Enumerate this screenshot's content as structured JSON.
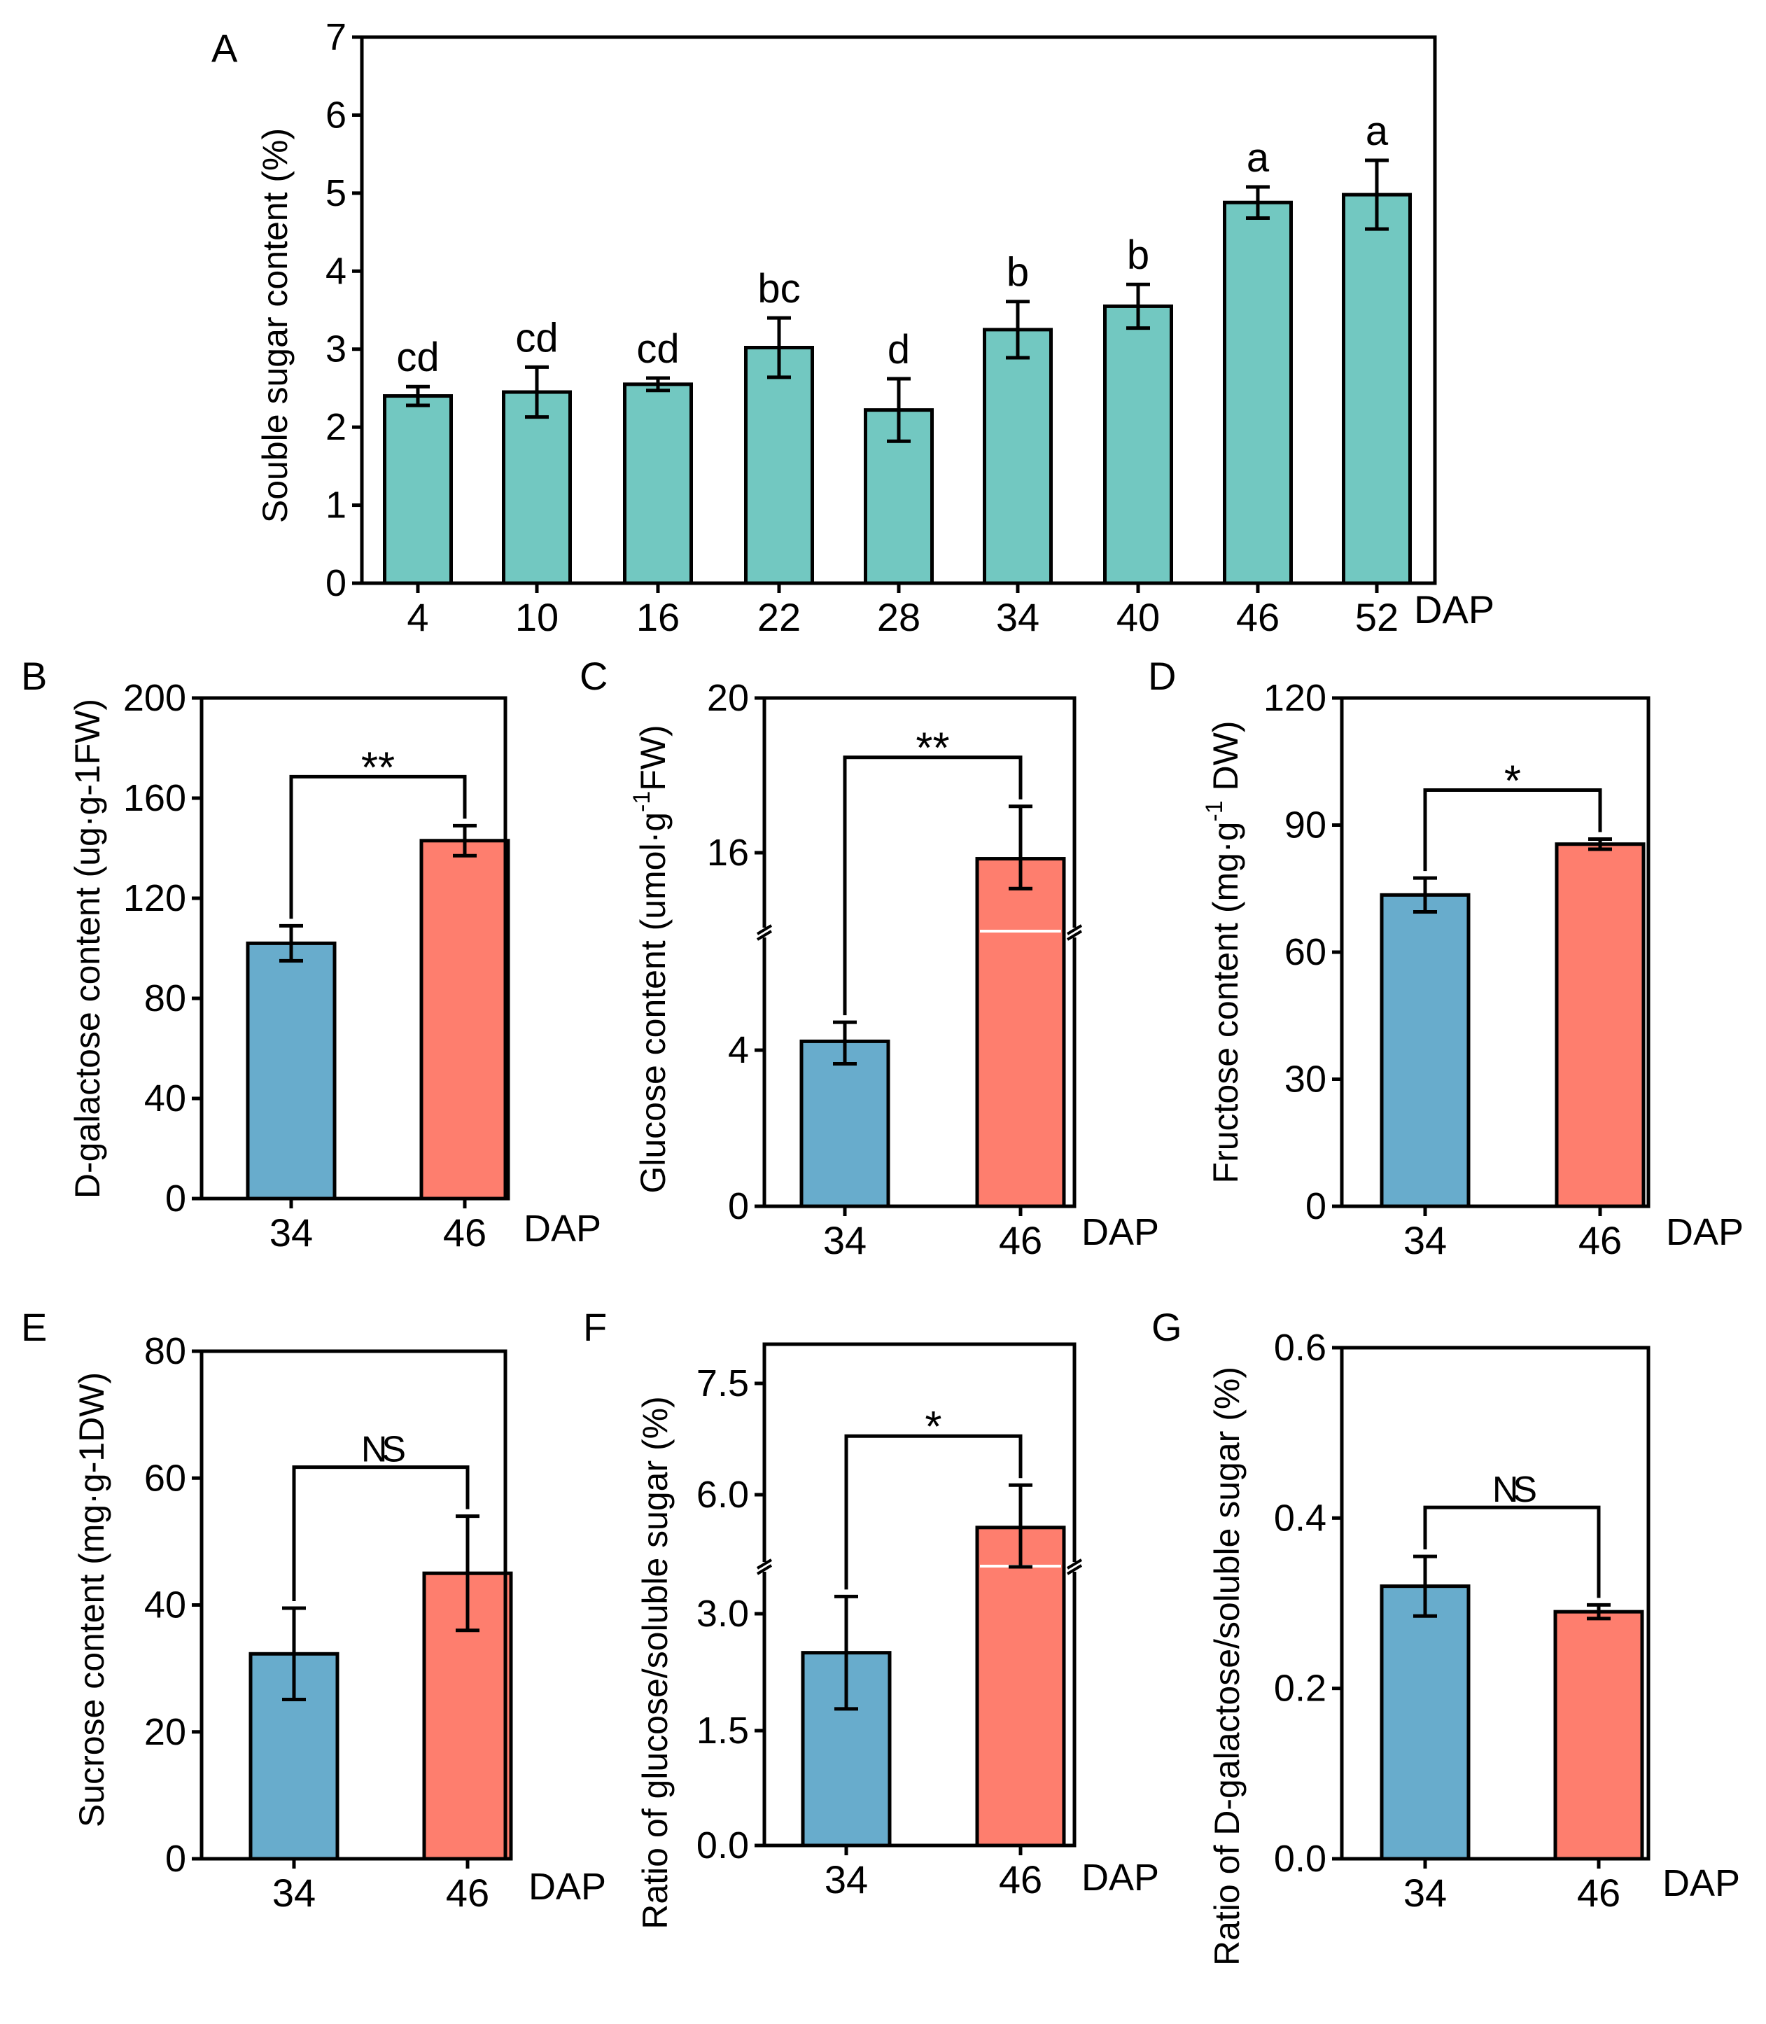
{
  "colors": {
    "teal": "#72C8C1",
    "blue": "#68ACCC",
    "salmon": "#FE7E6E",
    "axis": "#000000"
  },
  "chart_data": [
    {
      "panel": "A",
      "type": "bar",
      "categories": [
        "4",
        "10",
        "16",
        "22",
        "28",
        "34",
        "40",
        "46",
        "52"
      ],
      "values": [
        2.4,
        2.45,
        2.55,
        3.02,
        2.22,
        3.25,
        3.55,
        4.88,
        4.98
      ],
      "errors": [
        0.12,
        0.32,
        0.08,
        0.38,
        0.4,
        0.36,
        0.28,
        0.2,
        0.44
      ],
      "letters": [
        "cd",
        "cd",
        "cd",
        "bc",
        "d",
        "b",
        "b",
        "a",
        "a"
      ],
      "xlabel": "DAP",
      "ylabel": "Souble  sugar content (%)",
      "ylim": [
        0,
        7
      ],
      "yticks": [
        "0",
        "1",
        "2",
        "3",
        "4",
        "5",
        "6",
        "7"
      ]
    },
    {
      "panel": "B",
      "type": "bar",
      "categories": [
        "34",
        "46"
      ],
      "values": [
        102,
        143
      ],
      "errors": [
        7,
        6
      ],
      "sig": "**",
      "xlabel": "DAP",
      "ylabel": "D-galactose content (ug·g-1FW)",
      "ylim": [
        0,
        200
      ],
      "yticks": [
        "0",
        "40",
        "80",
        "120",
        "160",
        "200"
      ]
    },
    {
      "panel": "C",
      "type": "bar",
      "categories": [
        "34",
        "46"
      ],
      "values": [
        4.3,
        15.7
      ],
      "errors": [
        0.65,
        1.5
      ],
      "sig": "**",
      "xlabel": "DAP",
      "ylabel": "Glucose content (umol·g",
      "ylabel_sup": "-1",
      "ylabel_end": "FW)",
      "axis_break": true,
      "yticks": [
        "0",
        "4",
        "16",
        "20"
      ]
    },
    {
      "panel": "D",
      "type": "bar",
      "categories": [
        "34",
        "46"
      ],
      "values": [
        73.5,
        85.5
      ],
      "errors": [
        4,
        1.2
      ],
      "sig": "*",
      "xlabel": "DAP",
      "ylabel": "Fructose content (mg·g",
      "ylabel_sup": "-1",
      "ylabel_end": " DW)",
      "ylim": [
        0,
        120
      ],
      "yticks": [
        "0",
        "30",
        "60",
        "90",
        "120"
      ]
    },
    {
      "panel": "E",
      "type": "bar",
      "categories": [
        "34",
        "46"
      ],
      "values": [
        32.3,
        45
      ],
      "errors": [
        7.2,
        9
      ],
      "sig": "NS",
      "xlabel": "DAP",
      "ylabel": "Sucrose content (mg·g-1DW)",
      "ylim": [
        0,
        80
      ],
      "yticks": [
        "0",
        "20",
        "40",
        "60",
        "80"
      ]
    },
    {
      "panel": "F",
      "type": "bar",
      "categories": [
        "34",
        "46"
      ],
      "values": [
        2.5,
        5.75
      ],
      "errors": [
        0.72,
        0.38
      ],
      "sig": "*",
      "xlabel": "DAP",
      "ylabel": "Ratio of glucose/soluble sugar (%)",
      "axis_break": true,
      "yticks": [
        "0.0",
        "1.5",
        "3.0",
        "6.0",
        "7.5"
      ]
    },
    {
      "panel": "G",
      "type": "bar",
      "categories": [
        "34",
        "46"
      ],
      "values": [
        0.32,
        0.29
      ],
      "errors": [
        0.035,
        0.008
      ],
      "sig": "NS",
      "xlabel": "DAP",
      "ylabel": "Ratio of D-galactose/soluble sugar (%)",
      "ylim": [
        0,
        0.6
      ],
      "yticks": [
        "0.0",
        "0.2",
        "0.4",
        "0.6"
      ]
    }
  ]
}
